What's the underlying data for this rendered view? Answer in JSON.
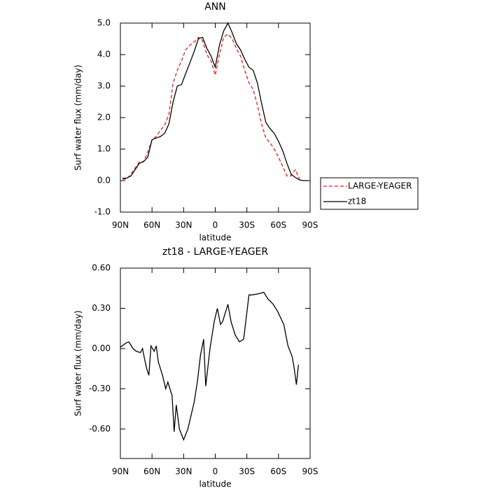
{
  "chart_data": [
    {
      "type": "line",
      "title": "ANN",
      "xlabel": "latitude",
      "ylabel": "Surf water flux (mm/day)",
      "xlim": [
        90,
        -90
      ],
      "xticks": [
        {
          "value": 90,
          "label": "90N"
        },
        {
          "value": 60,
          "label": "60N"
        },
        {
          "value": 30,
          "label": "30N"
        },
        0,
        {
          "value": -30,
          "label": "30S"
        },
        {
          "value": -60,
          "label": "60S"
        },
        {
          "value": -90,
          "label": "90S"
        }
      ],
      "ylim": [
        -1,
        5
      ],
      "yticks": [
        {
          "value": -1,
          "label": "-1.0"
        },
        {
          "value": 0,
          "label": "0.0"
        },
        {
          "value": 1,
          "label": "1.0"
        },
        {
          "value": 2,
          "label": "2.0"
        },
        {
          "value": 3,
          "label": "3.0"
        },
        {
          "value": 4,
          "label": "4.0"
        },
        {
          "value": 5,
          "label": "5.0"
        }
      ],
      "legend": "right",
      "x": [
        88,
        84,
        80,
        76,
        72,
        68,
        64,
        60,
        56,
        52,
        48,
        44,
        40,
        36,
        32,
        28,
        24,
        20,
        16,
        12,
        8,
        4,
        0,
        -4,
        -8,
        -12,
        -16,
        -20,
        -24,
        -28,
        -32,
        -36,
        -40,
        -44,
        -48,
        -52,
        -56,
        -60,
        -64,
        -68,
        -72,
        -76,
        -80,
        -84,
        -88
      ],
      "series": [
        {
          "name": "LARGE-YEAGER",
          "color": "#e0201b",
          "dash": true,
          "values": [
            0.05,
            0.05,
            0.2,
            0.4,
            0.6,
            0.6,
            0.9,
            1.3,
            1.4,
            1.6,
            1.75,
            2.1,
            3.1,
            3.5,
            3.8,
            4.15,
            4.3,
            4.4,
            4.55,
            4.45,
            4.0,
            3.8,
            3.35,
            4.0,
            4.55,
            4.65,
            4.5,
            4.2,
            3.95,
            3.5,
            3.1,
            2.9,
            2.4,
            1.8,
            1.35,
            1.2,
            1.0,
            0.75,
            0.45,
            0.15,
            0.15,
            0.35,
            0.05,
            null,
            null
          ]
        },
        {
          "name": "zt18",
          "color": "#000000",
          "dash": false,
          "values": [
            0.07,
            0.08,
            0.15,
            0.35,
            0.55,
            0.6,
            0.75,
            1.3,
            1.35,
            1.4,
            1.5,
            1.8,
            2.5,
            3.0,
            3.05,
            3.4,
            3.75,
            4.1,
            4.5,
            4.55,
            4.2,
            3.95,
            3.6,
            4.3,
            4.75,
            5.0,
            4.7,
            4.35,
            4.15,
            3.85,
            3.6,
            3.5,
            3.1,
            2.45,
            1.85,
            1.65,
            1.5,
            1.25,
            0.95,
            0.55,
            0.2,
            0.1,
            0.02,
            0.0,
            0.0
          ]
        }
      ]
    },
    {
      "type": "line",
      "title": "zt18 - LARGE-YEAGER",
      "xlabel": "latitude",
      "ylabel": "Surf water flux (mm/day)",
      "xlim": [
        90,
        -90
      ],
      "xticks": [
        {
          "value": 90,
          "label": "90N"
        },
        {
          "value": 60,
          "label": "60N"
        },
        {
          "value": 30,
          "label": "30N"
        },
        0,
        {
          "value": -30,
          "label": "30S"
        },
        {
          "value": -60,
          "label": "60S"
        },
        {
          "value": -90,
          "label": "90S"
        }
      ],
      "ylim": [
        -0.82,
        0.6
      ],
      "yticks": [
        {
          "value": -0.6,
          "label": "-0.60"
        },
        {
          "value": -0.3,
          "label": "-0.30"
        },
        {
          "value": 0,
          "label": "0.00"
        },
        {
          "value": 0.3,
          "label": "0.30"
        },
        {
          "value": 0.6,
          "label": "0.60"
        }
      ],
      "color": "#000000",
      "x": [
        90,
        85,
        82,
        78,
        75,
        71,
        69,
        67,
        65,
        63,
        61,
        58,
        56,
        54,
        50,
        47,
        45,
        41,
        39,
        37,
        34,
        30,
        26,
        23,
        20,
        17,
        14,
        11,
        9,
        5,
        1,
        -2,
        -5,
        -7,
        -12,
        -15,
        -19,
        -23,
        -27,
        -32,
        -35,
        -42,
        -46,
        -50,
        -55,
        -59,
        -65,
        -69,
        -73,
        -75,
        -77,
        -79
      ],
      "values": [
        0.01,
        0.04,
        0.05,
        0.0,
        -0.02,
        -0.03,
        0.0,
        -0.08,
        -0.15,
        -0.2,
        0.02,
        -0.02,
        0.02,
        -0.1,
        -0.2,
        -0.3,
        -0.25,
        -0.35,
        -0.62,
        -0.42,
        -0.6,
        -0.68,
        -0.6,
        -0.5,
        -0.4,
        -0.25,
        -0.05,
        0.07,
        -0.28,
        0.0,
        0.2,
        0.3,
        0.18,
        0.2,
        0.33,
        0.2,
        0.1,
        0.05,
        0.07,
        0.4,
        0.4,
        0.41,
        0.42,
        0.37,
        0.33,
        0.28,
        0.18,
        0.02,
        -0.06,
        -0.15,
        -0.27,
        -0.12
      ]
    }
  ]
}
